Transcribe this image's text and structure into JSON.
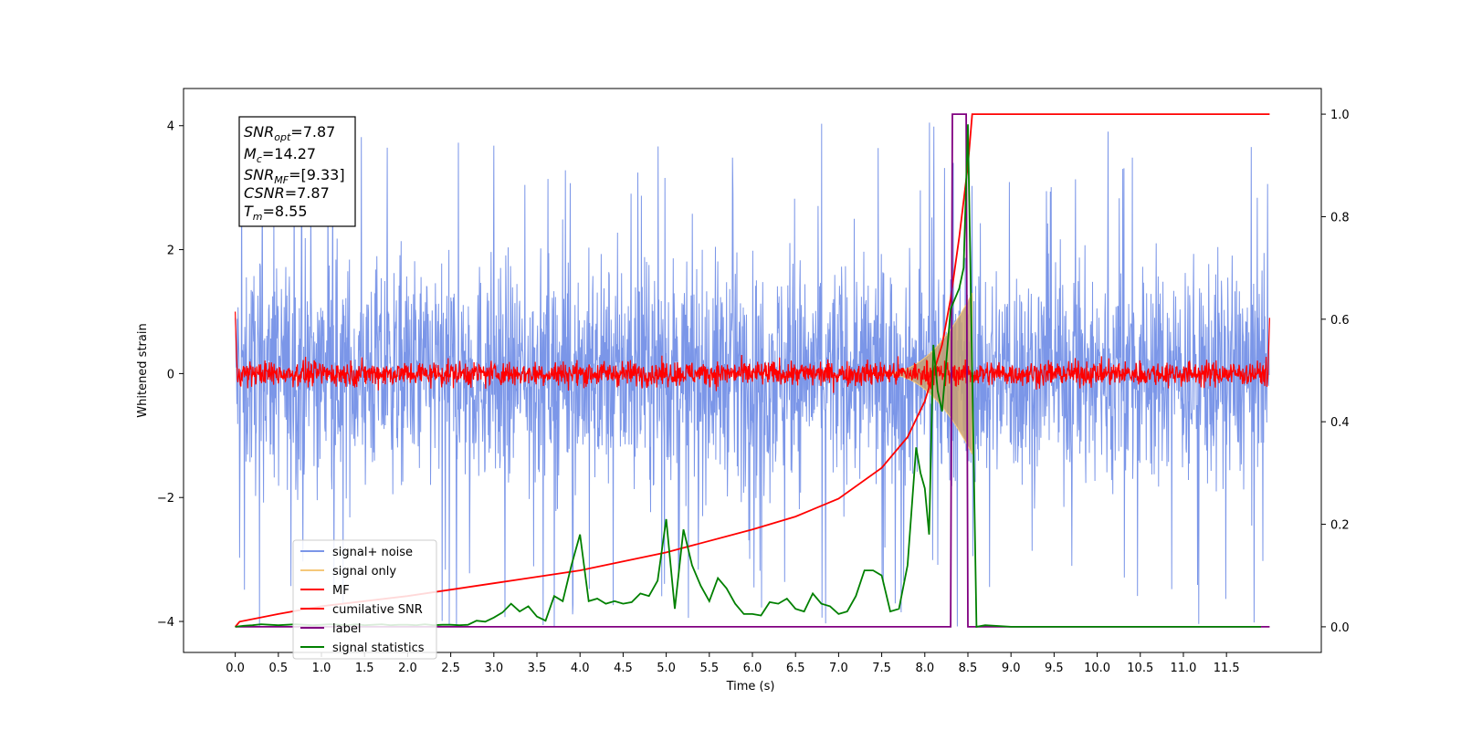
{
  "chart_data": {
    "type": "line",
    "xlabel": "Time (s)",
    "ylabel": "Whitened strain",
    "xlim": [
      -0.6,
      12.6
    ],
    "ylim": [
      -4.5,
      4.6
    ],
    "y2lim": [
      -0.05,
      1.05
    ],
    "x_ticks": [
      "0.0",
      "0.5",
      "1.0",
      "1.5",
      "2.0",
      "2.5",
      "3.0",
      "3.5",
      "4.0",
      "4.5",
      "5.0",
      "5.5",
      "6.0",
      "6.5",
      "7.0",
      "7.5",
      "8.0",
      "8.5",
      "9.0",
      "9.5",
      "10.0",
      "10.5",
      "11.0",
      "11.5"
    ],
    "y_ticks": [
      "4",
      "2",
      "0",
      "−2",
      "−4"
    ],
    "y2_ticks": [
      "1.0",
      "0.8",
      "0.6",
      "0.4",
      "0.2",
      "0.0"
    ],
    "legend_position": "lower-left",
    "annotation": {
      "snr_opt": "=7.87",
      "mc": "=14.27",
      "snr_mf": "=[9.33]",
      "csnr": "=7.87",
      "tm": "=8.55"
    },
    "series": [
      {
        "name": "signal+ noise",
        "color": "#7b96e8",
        "axis": "left",
        "description": "whitened noise, amplitude approx ±3 with spikes to ±4.1, 0 to 12 s"
      },
      {
        "name": "signal only",
        "color": "#f5c87a",
        "axis": "left",
        "description": "chirp growing from 0 near 7.5 s to about ±1.3 at 8.5 s, then ending"
      },
      {
        "name": "MF",
        "color": "#ff0000",
        "axis": "left",
        "description": "matched filter noise around 0, amplitude approx ±0.3, with edge spikes to about 1.0"
      },
      {
        "name": "cumilative SNR",
        "color": "#ff0000",
        "axis": "right",
        "x": [
          0.0,
          0.05,
          0.5,
          1.0,
          2.0,
          3.0,
          4.0,
          5.0,
          6.0,
          6.5,
          7.0,
          7.5,
          7.8,
          8.0,
          8.2,
          8.3,
          8.4,
          8.5,
          8.55,
          9.0,
          12.0
        ],
        "values": [
          0.0,
          0.01,
          0.025,
          0.04,
          0.06,
          0.085,
          0.11,
          0.145,
          0.19,
          0.215,
          0.25,
          0.31,
          0.37,
          0.44,
          0.55,
          0.64,
          0.76,
          0.9,
          1.0,
          1.0,
          1.0
        ]
      },
      {
        "name": "label",
        "color": "#800080",
        "axis": "right",
        "x": [
          0.0,
          8.3,
          8.32,
          8.48,
          8.5,
          12.0
        ],
        "values": [
          0.0,
          0.0,
          1.0,
          1.0,
          0.0,
          0.0
        ]
      },
      {
        "name": "signal statistics",
        "color": "#008000",
        "axis": "right",
        "x": [
          0.0,
          0.1,
          0.2,
          0.3,
          0.4,
          0.5,
          0.6,
          0.7,
          0.8,
          0.9,
          1.0,
          1.1,
          1.2,
          1.3,
          1.4,
          1.5,
          1.6,
          1.7,
          1.8,
          1.9,
          2.0,
          2.1,
          2.2,
          2.3,
          2.4,
          2.5,
          2.6,
          2.7,
          2.8,
          2.9,
          3.0,
          3.1,
          3.2,
          3.3,
          3.4,
          3.5,
          3.6,
          3.7,
          3.8,
          3.9,
          4.0,
          4.1,
          4.2,
          4.3,
          4.4,
          4.5,
          4.6,
          4.7,
          4.8,
          4.9,
          5.0,
          5.1,
          5.2,
          5.3,
          5.4,
          5.5,
          5.6,
          5.7,
          5.8,
          5.9,
          6.0,
          6.1,
          6.2,
          6.3,
          6.4,
          6.5,
          6.6,
          6.7,
          6.8,
          6.9,
          7.0,
          7.1,
          7.2,
          7.3,
          7.4,
          7.5,
          7.6,
          7.7,
          7.8,
          7.9,
          7.95,
          8.0,
          8.05,
          8.1,
          8.15,
          8.2,
          8.3,
          8.4,
          8.45,
          8.5,
          8.55,
          8.6,
          8.7,
          9.0,
          10.0,
          11.0,
          11.9
        ],
        "values": [
          0.0,
          0.002,
          0.003,
          0.005,
          0.004,
          0.003,
          0.004,
          0.005,
          0.004,
          0.003,
          0.004,
          0.005,
          0.004,
          0.003,
          0.005,
          0.003,
          0.004,
          0.005,
          0.003,
          0.004,
          0.004,
          0.003,
          0.005,
          0.003,
          0.004,
          0.004,
          0.003,
          0.004,
          0.012,
          0.01,
          0.018,
          0.028,
          0.045,
          0.03,
          0.04,
          0.02,
          0.012,
          0.06,
          0.05,
          0.12,
          0.18,
          0.05,
          0.055,
          0.045,
          0.05,
          0.045,
          0.048,
          0.065,
          0.06,
          0.09,
          0.21,
          0.035,
          0.19,
          0.12,
          0.08,
          0.05,
          0.095,
          0.075,
          0.045,
          0.025,
          0.025,
          0.022,
          0.048,
          0.045,
          0.055,
          0.035,
          0.03,
          0.065,
          0.045,
          0.04,
          0.025,
          0.03,
          0.06,
          0.11,
          0.11,
          0.1,
          0.03,
          0.035,
          0.12,
          0.35,
          0.3,
          0.27,
          0.18,
          0.55,
          0.46,
          0.42,
          0.62,
          0.66,
          0.7,
          0.98,
          0.5,
          0.0,
          0.003,
          0.0,
          0.0,
          0.0,
          0.0
        ]
      }
    ]
  }
}
